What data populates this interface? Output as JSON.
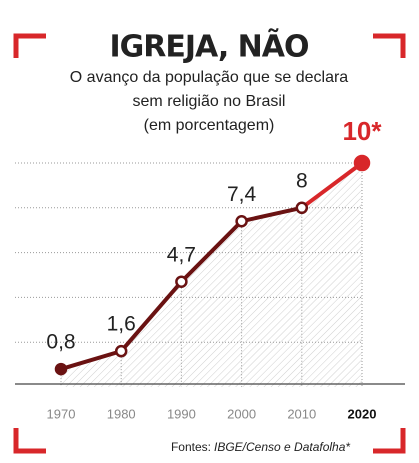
{
  "chart_data": {
    "type": "line",
    "title": "IGREJA, NÃO",
    "subtitle": [
      "O avanço da população que se declara",
      "sem religião no Brasil",
      "(em porcentagem)"
    ],
    "x": [
      1970,
      1980,
      1990,
      2000,
      2010,
      2020
    ],
    "series": [
      {
        "values": [
          0.8,
          1.6,
          4.7,
          7.4,
          8,
          10
        ],
        "value_labels": [
          "0,8",
          "1,6",
          "4,7",
          "7,4",
          "8",
          "10*"
        ],
        "color": "#6a1212",
        "highlight_color": "#d8272a"
      }
    ],
    "xlim": [
      1970,
      2020
    ],
    "xticks": [
      1970,
      1980,
      1990,
      2000,
      2010,
      2020
    ],
    "ylim": [
      0,
      10
    ],
    "yticks": [
      0,
      2,
      4,
      6,
      8,
      10
    ],
    "grid": true,
    "source_label": "Fontes:",
    "source": "IBGE/Censo e Datafolha*"
  }
}
